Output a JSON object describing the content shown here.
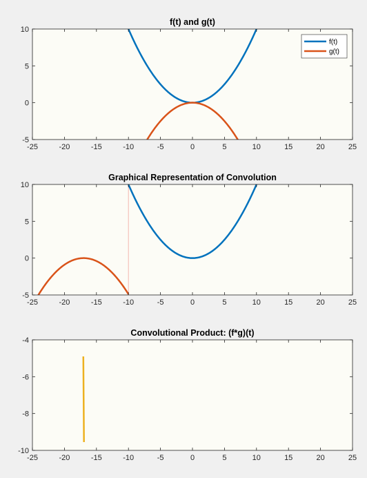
{
  "figure": {
    "background": "#f0f0f0",
    "axes_background": "#fcfcf6",
    "axis_color": "#262626"
  },
  "chart_data": [
    {
      "type": "line",
      "title": "f(t) and g(t)",
      "xlabel": "",
      "ylabel": "",
      "xlim": [
        -25,
        25
      ],
      "ylim": [
        -5,
        10
      ],
      "xticks": [
        -25,
        -20,
        -15,
        -10,
        -5,
        0,
        5,
        10,
        15,
        20,
        25
      ],
      "yticks": [
        -5,
        0,
        5,
        10
      ],
      "grid": false,
      "legend": {
        "position": "top-right",
        "entries": [
          "f(t)",
          "g(t)"
        ]
      },
      "series": [
        {
          "name": "f(t)",
          "color": "#0072bd",
          "expr": "t^2/10",
          "domain": [
            -10,
            10
          ],
          "x": [
            -10,
            -8,
            -6,
            -4,
            -2,
            0,
            2,
            4,
            6,
            8,
            10
          ],
          "y": [
            10,
            6.4,
            3.6,
            1.6,
            0.4,
            0,
            0.4,
            1.6,
            3.6,
            6.4,
            10
          ]
        },
        {
          "name": "g(t)",
          "color": "#d95319",
          "expr": "-t^2/10",
          "domain": [
            -10,
            10
          ],
          "x": [
            -7,
            -6,
            -4,
            -2,
            0,
            2,
            4,
            6,
            7
          ],
          "y": [
            -4.9,
            -3.6,
            -1.6,
            -0.4,
            0,
            -0.4,
            -1.6,
            -3.6,
            -4.9
          ]
        }
      ]
    },
    {
      "type": "line",
      "title": "Graphical Representation of Convolution",
      "xlabel": "",
      "ylabel": "",
      "xlim": [
        -25,
        25
      ],
      "ylim": [
        -5,
        10
      ],
      "xticks": [
        -25,
        -20,
        -15,
        -10,
        -5,
        0,
        5,
        10,
        15,
        20,
        25
      ],
      "yticks": [
        -5,
        0,
        5,
        10
      ],
      "grid": false,
      "series": [
        {
          "color": "#0072bd",
          "expr": "t^2/10",
          "domain": [
            -10,
            10
          ],
          "x": [
            -10,
            -8,
            -6,
            -4,
            -2,
            0,
            2,
            4,
            6,
            8,
            10
          ],
          "y": [
            10,
            6.4,
            3.6,
            1.6,
            0.4,
            0,
            0.4,
            1.6,
            3.6,
            6.4,
            10
          ]
        },
        {
          "color": "#d95319",
          "expr": "-(t+17)^2/10",
          "domain": [
            -27,
            -10
          ],
          "x": [
            -24,
            -22,
            -20,
            -18,
            -17,
            -16,
            -14,
            -12,
            -10
          ],
          "y": [
            -4.9,
            -2.5,
            -0.9,
            -0.1,
            0,
            -0.1,
            -0.9,
            -2.5,
            -4.9
          ]
        }
      ],
      "vline": {
        "x": -10,
        "color": "#f4b6b0"
      }
    },
    {
      "type": "line",
      "title": "Convolutional Product: (f*g)(t)",
      "xlabel": "",
      "ylabel": "",
      "xlim": [
        -25,
        25
      ],
      "ylim": [
        -10,
        -4
      ],
      "xticks": [
        -25,
        -20,
        -15,
        -10,
        -5,
        0,
        5,
        10,
        15,
        20,
        25
      ],
      "yticks": [
        -10,
        -8,
        -6,
        -4
      ],
      "grid": false,
      "series": [
        {
          "color": "#edb120",
          "x": [
            -17.05,
            -17.0,
            -16.95
          ],
          "y": [
            -4.9,
            -7.2,
            -9.55
          ]
        }
      ]
    }
  ]
}
